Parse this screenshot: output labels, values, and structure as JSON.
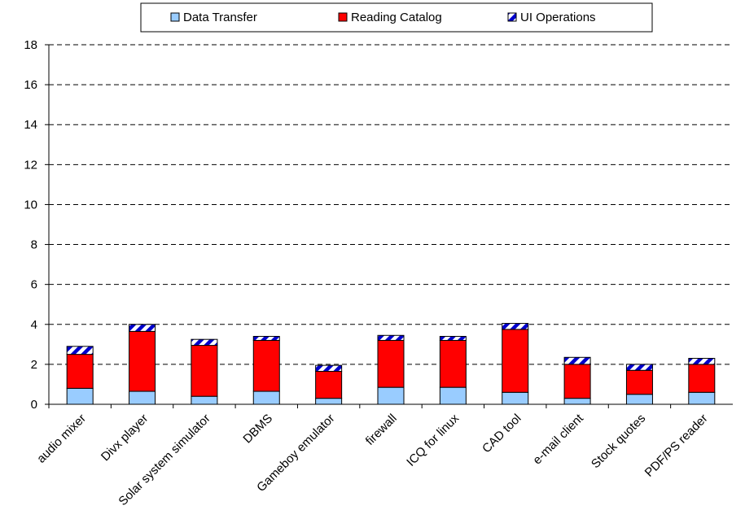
{
  "chart_data": {
    "type": "bar",
    "stacked": true,
    "categories": [
      "audio mixer",
      "Divx player",
      "Solar system simulator",
      "DBMS",
      "Gameboy emulator",
      "firewall",
      "ICQ for linux",
      "CAD tool",
      "e-mail client",
      "Stock quotes",
      "PDF/PS reader"
    ],
    "series": [
      {
        "name": "Data Transfer",
        "color": "#99ccff",
        "values": [
          0.8,
          0.65,
          0.4,
          0.65,
          0.3,
          0.85,
          0.85,
          0.6,
          0.3,
          0.5,
          0.6
        ]
      },
      {
        "name": "Reading Catalog",
        "color": "#ff0000",
        "values": [
          1.7,
          3.0,
          2.55,
          2.55,
          1.35,
          2.35,
          2.35,
          3.15,
          1.7,
          1.2,
          1.4
        ]
      },
      {
        "name": "UI Operations",
        "pattern": "blue-white-diagonal",
        "values": [
          0.4,
          0.35,
          0.3,
          0.2,
          0.3,
          0.25,
          0.2,
          0.3,
          0.35,
          0.3,
          0.3
        ]
      }
    ],
    "ylim": [
      0,
      18
    ],
    "yticks": [
      "0",
      "2",
      "4",
      "6",
      "8",
      "10",
      "12",
      "14",
      "16",
      "18"
    ],
    "grid": "horizontal dashed",
    "legend_position": "top"
  }
}
